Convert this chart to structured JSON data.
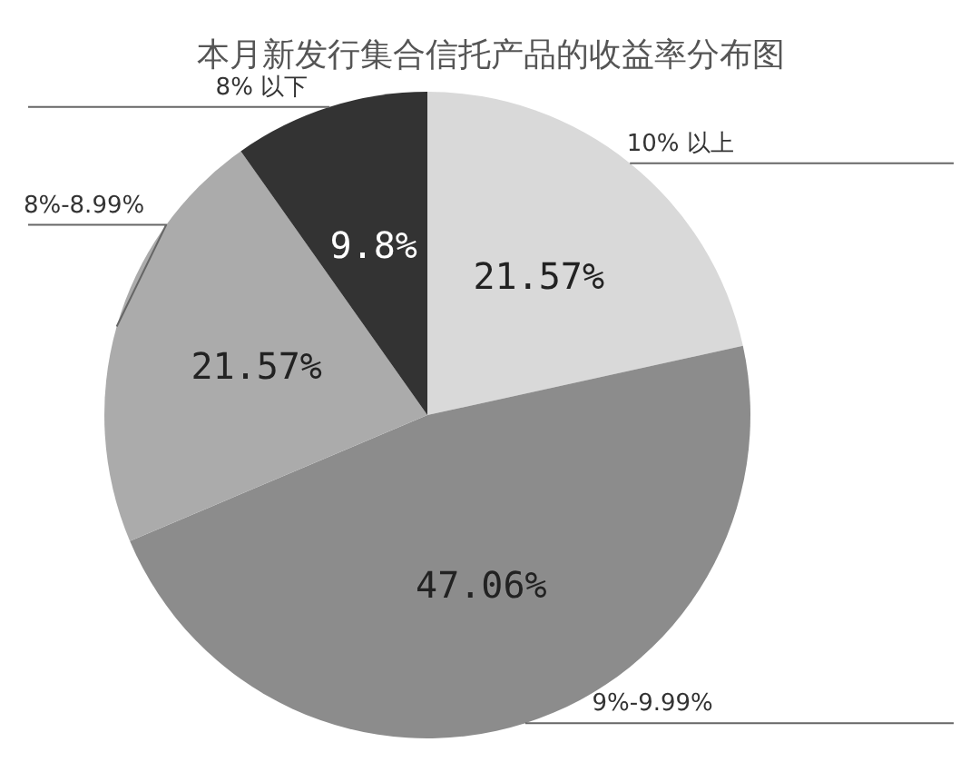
{
  "chart_data": {
    "type": "pie",
    "title": "本月新发行集合信托产品的收益率分布图",
    "categories": [
      "10% 以上",
      "9%-9.99%",
      "8%-8.99%",
      "8% 以下"
    ],
    "values": [
      21.57,
      47.06,
      21.57,
      9.8
    ],
    "colors": [
      "#d9d9d9",
      "#8c8c8c",
      "#ababab",
      "#333333"
    ],
    "value_labels": [
      "21.57%",
      "47.06%",
      "21.57%",
      "9.8%"
    ]
  }
}
